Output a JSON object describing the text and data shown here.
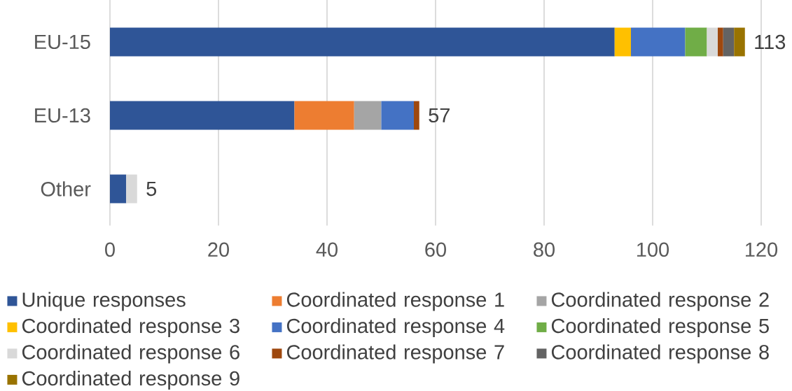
{
  "chart_data": {
    "type": "bar",
    "orientation": "horizontal",
    "stacked": true,
    "categories": [
      "EU-15",
      "EU-13",
      "Other"
    ],
    "series": [
      {
        "name": "Unique responses",
        "color": "#2f5597",
        "values": [
          93,
          34,
          3
        ]
      },
      {
        "name": "Coordinated response 1",
        "color": "#ed7d31",
        "values": [
          null,
          11,
          null
        ]
      },
      {
        "name": "Coordinated response 2",
        "color": "#a5a5a5",
        "values": [
          null,
          5,
          null
        ]
      },
      {
        "name": "Coordinated response 3",
        "color": "#ffc000",
        "values": [
          3,
          null,
          null
        ]
      },
      {
        "name": "Coordinated response 4",
        "color": "#4472c4",
        "values": [
          10,
          6,
          null
        ]
      },
      {
        "name": "Coordinated response 5",
        "color": "#70ad47",
        "values": [
          4,
          null,
          null
        ]
      },
      {
        "name": "Coordinated response 6",
        "color": "#d9d9d9",
        "values": [
          2,
          null,
          2
        ]
      },
      {
        "name": "Coordinated response 7",
        "color": "#9e480e",
        "values": [
          1,
          1,
          null
        ]
      },
      {
        "name": "Coordinated response 8",
        "color": "#636363",
        "values": [
          2,
          null,
          null
        ]
      },
      {
        "name": "Coordinated response 9",
        "color": "#997300",
        "values": [
          2,
          null,
          null
        ]
      }
    ],
    "xlim": [
      0,
      120
    ],
    "xticks": [
      0,
      20,
      40,
      60,
      80,
      100,
      120
    ],
    "grid": "x",
    "legend": "bottom",
    "totals": [
      "113",
      "57",
      "5"
    ]
  }
}
